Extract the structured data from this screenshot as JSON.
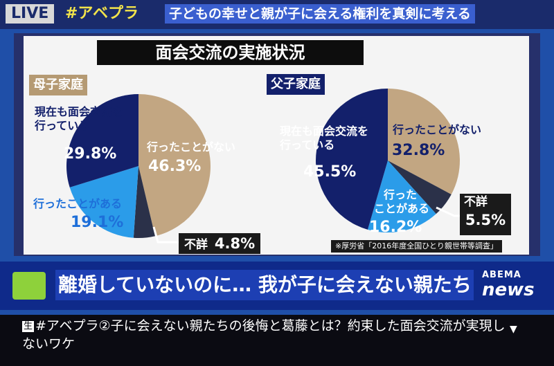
{
  "header": {
    "live": "LIVE",
    "hashtag": "#アベプラ",
    "headline": "子どもの幸せと親が子に会える権利を真剣に考える"
  },
  "chart": {
    "title": "面会交流の実施状況",
    "source": "※厚労省「2016年度全国ひとり親世帯等調査」"
  },
  "chart_data": [
    {
      "type": "pie",
      "title": "母子家庭",
      "slices": [
        {
          "label": "行ったことがない",
          "value": 46.3,
          "value_label": "46.3%",
          "color": "#c2a682"
        },
        {
          "label": "不詳",
          "value": 4.8,
          "value_label": "4.8%",
          "color": "#2b3149"
        },
        {
          "label": "行ったことがある",
          "value": 19.1,
          "value_label": "19.1%",
          "color": "#2b9ce9"
        },
        {
          "label": "現在も面会交流を行っている",
          "value": 29.8,
          "value_label": "29.8%",
          "color": "#13206b"
        }
      ]
    },
    {
      "type": "pie",
      "title": "父子家庭",
      "slices": [
        {
          "label": "行ったことがない",
          "value": 32.8,
          "value_label": "32.8%",
          "color": "#c2a682"
        },
        {
          "label": "不詳",
          "value": 5.5,
          "value_label": "5.5%",
          "color": "#2b3149"
        },
        {
          "label": "行ったことがある",
          "value": 16.2,
          "value_label": "16.2%",
          "color": "#2b9ce9"
        },
        {
          "label": "現在も面会交流を行っている",
          "value": 45.5,
          "value_label": "45.5%",
          "color": "#13206b"
        }
      ]
    }
  ],
  "labels": {
    "mother": {
      "current_l1": "現在も面会交流を",
      "current_l2": "行っている",
      "never": "行ったことがない",
      "once": "行ったことがある",
      "unknown": "不詳"
    },
    "father": {
      "current_l1": "現在も面会交流を",
      "current_l2": "行っている",
      "never": "行ったことがない",
      "once_l1": "行った",
      "once_l2": "ことがある",
      "unknown": "不詳"
    }
  },
  "lower_third": {
    "title": "離婚していないのに… 我が子に会えない親たち",
    "brand_top": "ABEMA",
    "brand_bottom": "news"
  },
  "caption": {
    "badge": "生",
    "text": "#アベプラ②子に会えない親たちの後悔と葛藤とは？約束した面会交流が実現しないワケ"
  },
  "colors": {
    "navy": "#13206b",
    "tan": "#c2a682",
    "sky": "#2b9ce9",
    "dark": "#2b3149"
  }
}
